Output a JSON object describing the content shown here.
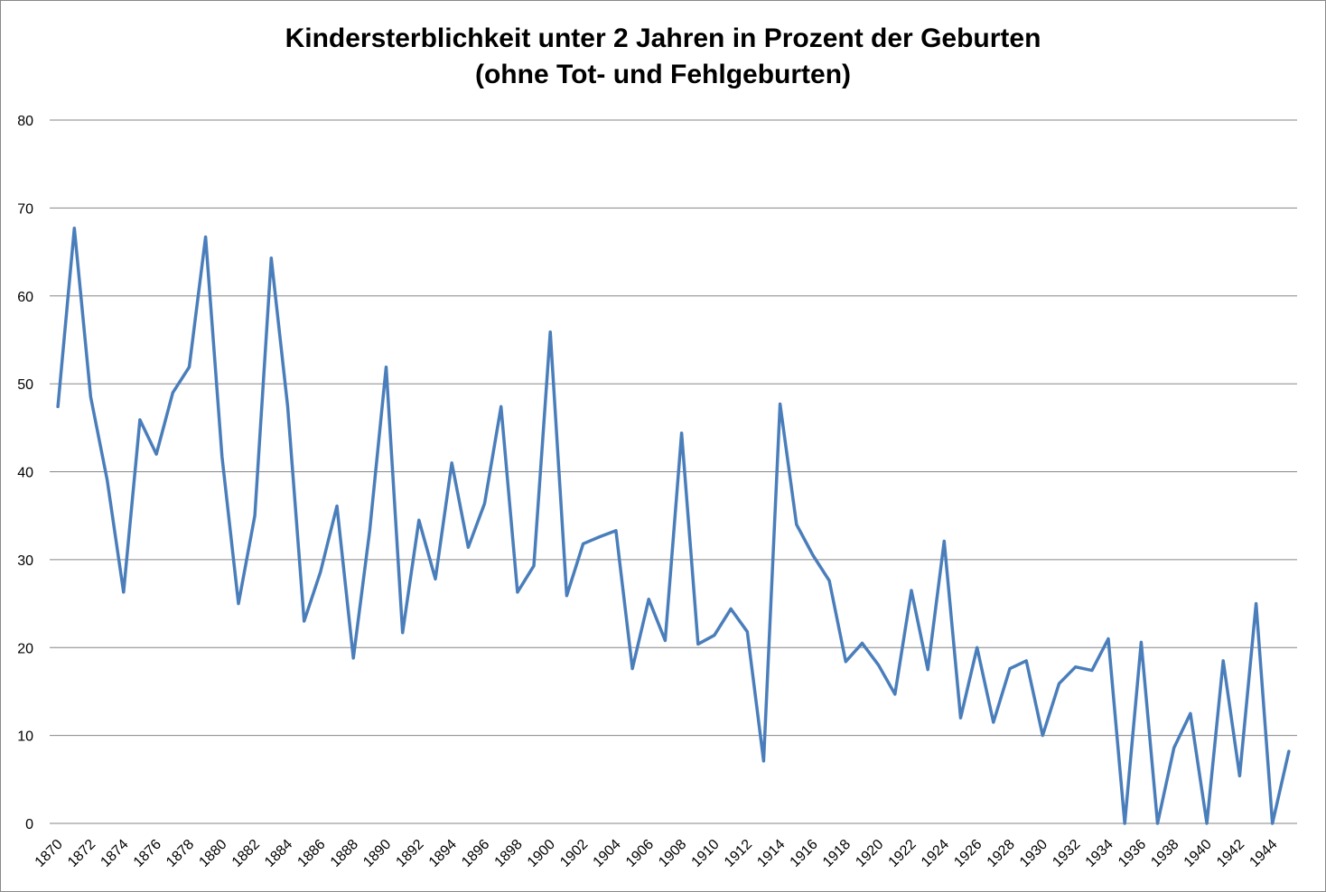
{
  "chart_data": {
    "type": "line",
    "title": "Kindersterblichkeit unter 2 Jahren in Prozent der Geburten",
    "subtitle": "(ohne Tot- und Fehlgeburten)",
    "xlabel": "",
    "ylabel": "",
    "ylim": [
      0,
      80
    ],
    "yticks": [
      0,
      10,
      20,
      30,
      40,
      50,
      60,
      70,
      80
    ],
    "grid": true,
    "legend": "none",
    "x": [
      1870,
      1871,
      1872,
      1873,
      1874,
      1875,
      1876,
      1877,
      1878,
      1879,
      1880,
      1881,
      1882,
      1883,
      1884,
      1885,
      1886,
      1887,
      1888,
      1889,
      1890,
      1891,
      1892,
      1893,
      1894,
      1895,
      1896,
      1897,
      1898,
      1899,
      1900,
      1901,
      1902,
      1903,
      1904,
      1905,
      1906,
      1907,
      1908,
      1909,
      1910,
      1911,
      1912,
      1913,
      1914,
      1915,
      1916,
      1917,
      1918,
      1919,
      1920,
      1921,
      1922,
      1923,
      1924,
      1925,
      1926,
      1927,
      1928,
      1929,
      1930,
      1931,
      1932,
      1933,
      1934,
      1935,
      1936,
      1937,
      1938,
      1939,
      1940,
      1941,
      1942,
      1943,
      1944,
      1945
    ],
    "xticklabels": [
      "1870",
      "1872",
      "1874",
      "1876",
      "1878",
      "1880",
      "1882",
      "1884",
      "1886",
      "1888",
      "1890",
      "1892",
      "1894",
      "1896",
      "1898",
      "1900",
      "1902",
      "1904",
      "1906",
      "1908",
      "1910",
      "1912",
      "1914",
      "1916",
      "1918",
      "1920",
      "1922",
      "1924",
      "1926",
      "1928",
      "1930",
      "1932",
      "1934",
      "1936",
      "1938",
      "1940",
      "1942",
      "1944"
    ],
    "series": [
      {
        "name": "",
        "color": "#4a7ebb",
        "values": [
          47.4,
          67.7,
          48.5,
          39.1,
          26.3,
          45.9,
          42.0,
          49.0,
          51.9,
          66.7,
          41.7,
          25.0,
          35.0,
          64.3,
          47.4,
          23.0,
          28.6,
          36.1,
          18.8,
          33.3,
          51.9,
          21.7,
          34.5,
          27.8,
          41.0,
          31.4,
          36.4,
          47.4,
          26.3,
          29.3,
          55.9,
          25.9,
          31.8,
          32.6,
          33.3,
          17.6,
          25.5,
          20.8,
          44.4,
          20.4,
          21.4,
          24.4,
          21.8,
          7.1,
          47.7,
          34.0,
          30.5,
          27.6,
          18.4,
          20.5,
          18.0,
          14.7,
          26.5,
          17.5,
          32.1,
          12.0,
          20.0,
          11.5,
          17.6,
          18.5,
          10.0,
          15.9,
          17.8,
          17.4,
          21.0,
          0,
          20.6,
          0,
          8.6,
          12.5,
          0,
          18.5,
          5.4,
          25.0,
          0,
          8.2
        ]
      }
    ]
  }
}
